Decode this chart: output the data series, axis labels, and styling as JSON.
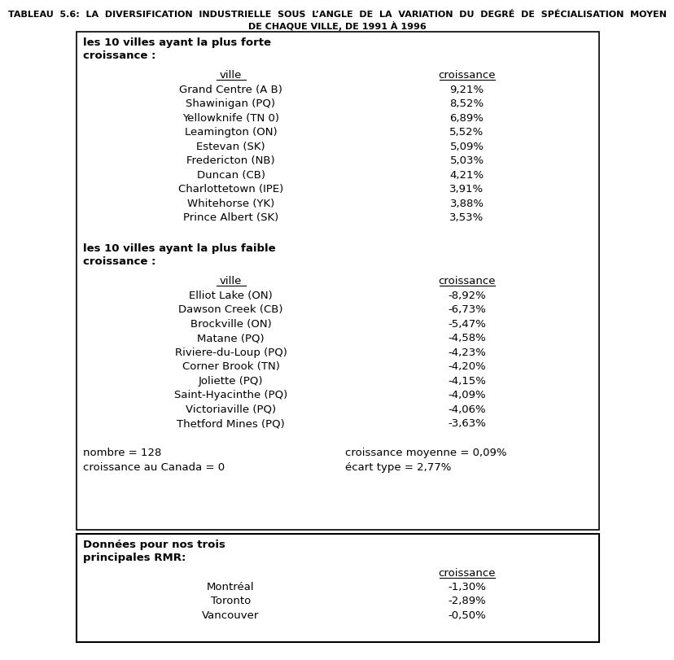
{
  "title_line1": "TABLEAU  5.6:  LA  DIVERSIFICATION  INDUSTRIELLE  SOUS  L’ANGLE  DE  LA  VARIATION  DU  DEGRÉ  DE  SPÉCIALISATION  MOYEN",
  "title_line2": "DE CHAQUE VILLE, DE 1991 À 1996",
  "section1_header1": "les 10 villes ayant la plus forte",
  "section1_header2": "croissance :",
  "section1_col1_header": "ville",
  "section1_col2_header": "croissance",
  "section1_cities": [
    "Grand Centre (A B)",
    "Shawinigan (PQ)",
    "Yellowknife (TN 0)",
    "Leamington (ON)",
    "Estevan (SK)",
    "Fredericton (NB)",
    "Duncan (CB)",
    "Charlottetown (IPE)",
    "Whitehorse (YK)",
    "Prince Albert (SK)"
  ],
  "section1_values": [
    "9,21%",
    "8,52%",
    "6,89%",
    "5,52%",
    "5,09%",
    "5,03%",
    "4,21%",
    "3,91%",
    "3,88%",
    "3,53%"
  ],
  "section2_header1": "les 10 villes ayant la plus faible",
  "section2_header2": "croissance :",
  "section2_col1_header": "ville",
  "section2_col2_header": "croissance",
  "section2_cities": [
    "Elliot Lake (ON)",
    "Dawson Creek (CB)",
    "Brockville (ON)",
    "Matane (PQ)",
    "Riviere-du-Loup (PQ)",
    "Corner Brook (TN)",
    "Joliette (PQ)",
    "Saint-Hyacinthe (PQ)",
    "Victoriaville (PQ)",
    "Thetford Mines (PQ)"
  ],
  "section2_values": [
    "-8,92%",
    "-6,73%",
    "-5,47%",
    "-4,58%",
    "-4,23%",
    "-4,20%",
    "-4,15%",
    "-4,09%",
    "-4,06%",
    "-3,63%"
  ],
  "stats_left1": "nombre = 128",
  "stats_left2": "croissance au Canada = 0",
  "stats_right1": "croissance moyenne = 0,09%",
  "stats_right2": "écart type = 2,77%",
  "section3_header1": "Données pour nos trois",
  "section3_header2": "principales RMR:",
  "section3_col2_header": "croissance",
  "section3_cities": [
    "Montréal",
    "Toronto",
    "Vancouver"
  ],
  "section3_values": [
    "-1,30%",
    "-2,89%",
    "-0,50%"
  ],
  "bg_color": "#ffffff",
  "text_color": "#000000",
  "border_color": "#000000"
}
